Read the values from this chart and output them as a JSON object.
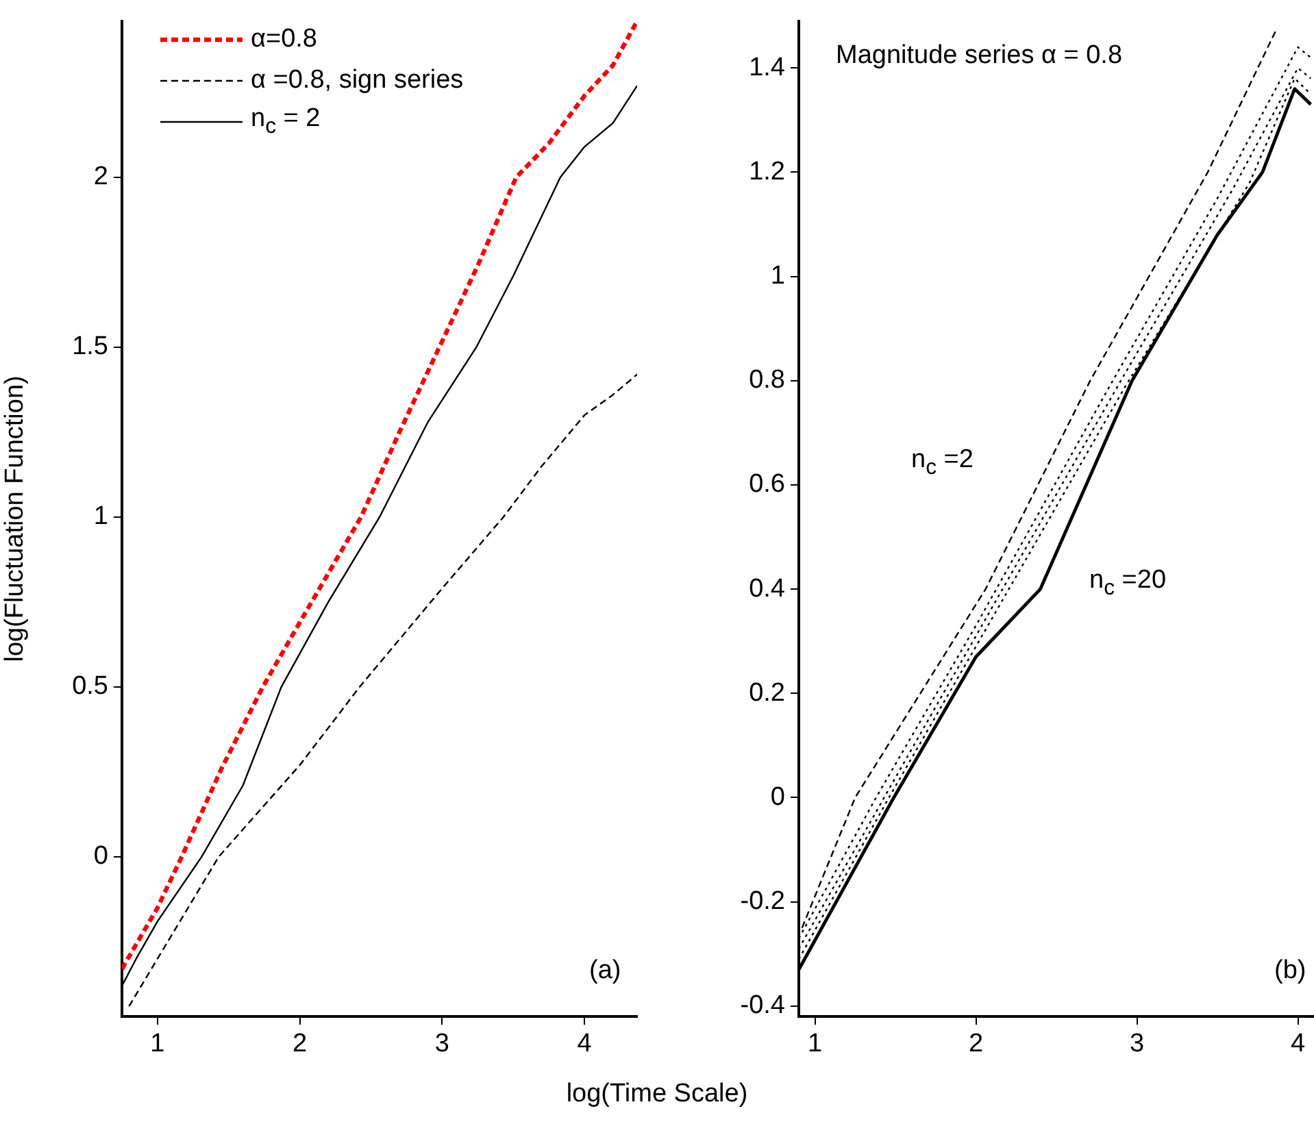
{
  "chart_data": [
    {
      "type": "line",
      "ylabel": "log(Fluctuation Function)",
      "xlabel": "log(Time Scale)",
      "xlim": [
        0.75,
        4.37
      ],
      "xticks": [
        1,
        2,
        3,
        4
      ],
      "ylim": [
        -0.47,
        2.46
      ],
      "yticks": [
        0,
        0.5,
        1,
        1.5,
        2
      ],
      "grid": false,
      "legend": "top left",
      "marker": "none",
      "annotations": [
        "(a)"
      ],
      "series": [
        {
          "name": "α=0.8",
          "color": "#ff0000",
          "line_style": "dashed",
          "x": [
            0.75,
            1.0,
            1.17,
            1.45,
            1.74,
            2.0,
            2.43,
            2.7,
            2.98,
            3.25,
            3.52,
            3.75,
            4.0,
            4.2,
            4.37
          ],
          "values": [
            -0.33,
            -0.15,
            0,
            0.26,
            0.5,
            0.69,
            1.0,
            1.25,
            1.5,
            1.74,
            2.0,
            2.1,
            2.24,
            2.33,
            2.46
          ]
        },
        {
          "name": "α =0.8, sign series",
          "color": "#000000",
          "line_style": "dashed",
          "x": [
            0.8,
            1.0,
            1.43,
            2.0,
            2.42,
            3.0,
            3.43,
            3.7,
            4.0,
            4.2,
            4.37
          ],
          "values": [
            -0.44,
            -0.3,
            0,
            0.27,
            0.5,
            0.79,
            1.0,
            1.15,
            1.3,
            1.36,
            1.42
          ]
        },
        {
          "name": "n$_{c}$ = 2",
          "color": "#000000",
          "line_style": "solid",
          "x": [
            0.75,
            0.85,
            1.0,
            1.31,
            1.6,
            1.87,
            2.2,
            2.56,
            2.9,
            3.24,
            3.5,
            3.83,
            4.0,
            4.2,
            4.37
          ],
          "values": [
            -0.38,
            -0.3,
            -0.19,
            0,
            0.21,
            0.5,
            0.75,
            1.0,
            1.28,
            1.5,
            1.71,
            2.0,
            2.09,
            2.16,
            2.27
          ]
        }
      ]
    },
    {
      "type": "line",
      "xlim": [
        0.9,
        4.1
      ],
      "xticks": [
        1,
        2,
        3,
        4
      ],
      "ylim": [
        -0.42,
        1.49
      ],
      "yticks": [
        -0.4,
        -0.2,
        0,
        0.2,
        0.4,
        0.6,
        0.8,
        1,
        1.2,
        1.4
      ],
      "grid": false,
      "marker": "none",
      "annotations": [
        "Magnitude series α = 0.8",
        "n$_{c}$ =2",
        "n$_{c}$ =20",
        "(b)"
      ],
      "series": [
        {
          "color": "#000000",
          "line_style": "dashed",
          "x": [
            0.92,
            1.25,
            2.06,
            2.71,
            3.44,
            3.86
          ],
          "values": [
            -0.25,
            0,
            0.4,
            0.8,
            1.2,
            1.47
          ]
        },
        {
          "color": "#000000",
          "line_style": "dotted",
          "x": [
            0.9,
            1.38,
            2.0,
            2.85,
            3.5,
            4.0,
            4.08
          ],
          "values": [
            -0.27,
            0,
            0.33,
            0.8,
            1.15,
            1.44,
            1.42
          ]
        },
        {
          "color": "#000000",
          "line_style": "dotted",
          "x": [
            0.9,
            1.43,
            2.0,
            2.9,
            3.6,
            4.0,
            4.08
          ],
          "values": [
            -0.29,
            0,
            0.31,
            0.8,
            1.17,
            1.4,
            1.38
          ]
        },
        {
          "color": "#000000",
          "line_style": "dotted",
          "x": [
            0.9,
            1.46,
            2.0,
            2.93,
            3.7,
            3.98,
            4.08
          ],
          "values": [
            -0.31,
            0,
            0.29,
            0.79,
            1.18,
            1.38,
            1.35
          ]
        },
        {
          "color": "#000000",
          "line_style": "solid",
          "x": [
            0.9,
            1.49,
            2.0,
            2.4,
            2.97,
            3.5,
            3.78,
            3.98,
            4.08
          ],
          "values": [
            -0.33,
            0,
            0.27,
            0.4,
            0.8,
            1.08,
            1.2,
            1.36,
            1.33
          ]
        }
      ]
    }
  ]
}
